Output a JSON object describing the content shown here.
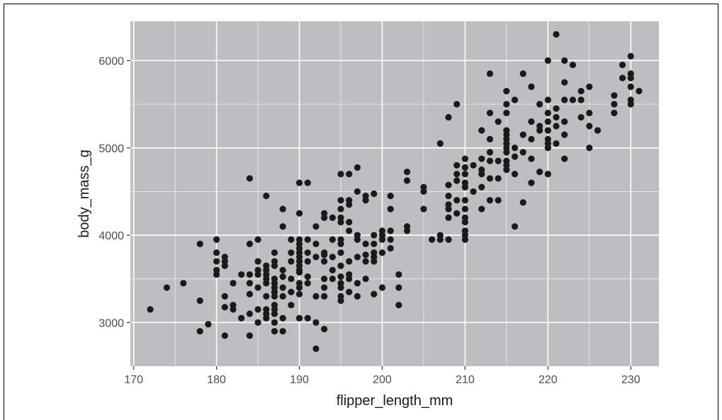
{
  "chart_data": {
    "type": "scatter",
    "title": "",
    "xlabel": "flipper_length_mm",
    "ylabel": "body_mass_g",
    "xlim": [
      169.6,
      233.4
    ],
    "ylim": [
      2500,
      6450
    ],
    "x_ticks": [
      170,
      180,
      190,
      200,
      210,
      220,
      230
    ],
    "y_ticks": [
      3000,
      4000,
      5000,
      6000
    ],
    "grid": true,
    "background": "#bdbec1",
    "grid_color": "#ffffff",
    "point_color": "#1a1a1a",
    "points": [
      [
        172,
        3150
      ],
      [
        174,
        3400
      ],
      [
        176,
        3450
      ],
      [
        178,
        3900
      ],
      [
        178,
        3250
      ],
      [
        178,
        2900
      ],
      [
        179,
        2980
      ],
      [
        180,
        3950
      ],
      [
        180,
        3800
      ],
      [
        180,
        3700
      ],
      [
        180,
        3600
      ],
      [
        180,
        3550
      ],
      [
        181,
        3750
      ],
      [
        181,
        3700
      ],
      [
        181,
        3650
      ],
      [
        181,
        3300
      ],
      [
        181,
        3175
      ],
      [
        181,
        2850
      ],
      [
        182,
        3450
      ],
      [
        182,
        3200
      ],
      [
        182,
        3150
      ],
      [
        183,
        3550
      ],
      [
        183,
        3050
      ],
      [
        184,
        4650
      ],
      [
        184,
        3900
      ],
      [
        184,
        3550
      ],
      [
        184,
        3450
      ],
      [
        184,
        3325
      ],
      [
        184,
        3100
      ],
      [
        184,
        2850
      ],
      [
        185,
        3950
      ],
      [
        185,
        3700
      ],
      [
        185,
        3600
      ],
      [
        185,
        3550
      ],
      [
        185,
        3400
      ],
      [
        185,
        3150
      ],
      [
        185,
        3000
      ],
      [
        186,
        4450
      ],
      [
        186,
        3650
      ],
      [
        186,
        3600
      ],
      [
        186,
        3550
      ],
      [
        186,
        3500
      ],
      [
        186,
        3450
      ],
      [
        186,
        3300
      ],
      [
        186,
        3150
      ],
      [
        186,
        3100
      ],
      [
        186,
        3050
      ],
      [
        187,
        3800
      ],
      [
        187,
        3700
      ],
      [
        187,
        3650
      ],
      [
        187,
        3500
      ],
      [
        187,
        3450
      ],
      [
        187,
        3400
      ],
      [
        187,
        3350
      ],
      [
        187,
        3300
      ],
      [
        187,
        3200
      ],
      [
        187,
        3150
      ],
      [
        187,
        3100
      ],
      [
        187,
        3000
      ],
      [
        187,
        2900
      ],
      [
        188,
        4300
      ],
      [
        188,
        4100
      ],
      [
        188,
        3600
      ],
      [
        188,
        3525
      ],
      [
        188,
        3400
      ],
      [
        188,
        3300
      ],
      [
        188,
        3050
      ],
      [
        188,
        2900
      ],
      [
        189,
        3950
      ],
      [
        189,
        3800
      ],
      [
        189,
        3700
      ],
      [
        189,
        3500
      ],
      [
        189,
        3350
      ],
      [
        189,
        3200
      ],
      [
        190,
        4600
      ],
      [
        190,
        4250
      ],
      [
        190,
        3950
      ],
      [
        190,
        3900
      ],
      [
        190,
        3850
      ],
      [
        190,
        3800
      ],
      [
        190,
        3750
      ],
      [
        190,
        3700
      ],
      [
        190,
        3650
      ],
      [
        190,
        3600
      ],
      [
        190,
        3575
      ],
      [
        190,
        3450
      ],
      [
        190,
        3400
      ],
      [
        190,
        3325
      ],
      [
        190,
        3050
      ],
      [
        191,
        4600
      ],
      [
        191,
        3950
      ],
      [
        191,
        3800
      ],
      [
        191,
        3700
      ],
      [
        191,
        3525
      ],
      [
        191,
        3450
      ],
      [
        191,
        3050
      ],
      [
        192,
        4100
      ],
      [
        192,
        3900
      ],
      [
        192,
        3750
      ],
      [
        192,
        3300
      ],
      [
        192,
        3000
      ],
      [
        192,
        2700
      ],
      [
        193,
        4250
      ],
      [
        193,
        4200
      ],
      [
        193,
        3800
      ],
      [
        193,
        3775
      ],
      [
        193,
        3700
      ],
      [
        193,
        3500
      ],
      [
        193,
        3400
      ],
      [
        193,
        3300
      ],
      [
        193,
        2925
      ],
      [
        194,
        4200
      ],
      [
        194,
        3950
      ],
      [
        194,
        3750
      ],
      [
        194,
        3600
      ],
      [
        194,
        3500
      ],
      [
        195,
        4700
      ],
      [
        195,
        4400
      ],
      [
        195,
        4300
      ],
      [
        195,
        4200
      ],
      [
        195,
        4150
      ],
      [
        195,
        3950
      ],
      [
        195,
        3900
      ],
      [
        195,
        3800
      ],
      [
        195,
        3650
      ],
      [
        195,
        3525
      ],
      [
        195,
        3450
      ],
      [
        195,
        3400
      ],
      [
        195,
        3300
      ],
      [
        195,
        3250
      ],
      [
        196,
        4700
      ],
      [
        196,
        4400
      ],
      [
        196,
        4350
      ],
      [
        196,
        4150
      ],
      [
        196,
        4050
      ],
      [
        196,
        3700
      ],
      [
        196,
        3550
      ],
      [
        196,
        3500
      ],
      [
        196,
        3350
      ],
      [
        197,
        4775
      ],
      [
        197,
        4500
      ],
      [
        197,
        4000
      ],
      [
        197,
        3950
      ],
      [
        197,
        3750
      ],
      [
        197,
        3450
      ],
      [
        197,
        3300
      ],
      [
        198,
        4450
      ],
      [
        198,
        4400
      ],
      [
        198,
        3900
      ],
      [
        198,
        3775
      ],
      [
        198,
        3700
      ],
      [
        198,
        3500
      ],
      [
        199,
        4475
      ],
      [
        199,
        4000
      ],
      [
        199,
        3900
      ],
      [
        199,
        3800
      ],
      [
        199,
        3750
      ],
      [
        199,
        3700
      ],
      [
        199,
        3325
      ],
      [
        200,
        4050
      ],
      [
        200,
        4000
      ],
      [
        200,
        3950
      ],
      [
        200,
        3800
      ],
      [
        200,
        3400
      ],
      [
        201,
        4450
      ],
      [
        201,
        4300
      ],
      [
        201,
        4050
      ],
      [
        201,
        3950
      ],
      [
        201,
        3850
      ],
      [
        202,
        3550
      ],
      [
        202,
        3400
      ],
      [
        202,
        3200
      ],
      [
        203,
        4725
      ],
      [
        203,
        4625
      ],
      [
        203,
        4100
      ],
      [
        203,
        4050
      ],
      [
        205,
        4550
      ],
      [
        205,
        4500
      ],
      [
        205,
        4300
      ],
      [
        206,
        3950
      ],
      [
        207,
        5050
      ],
      [
        207,
        4000
      ],
      [
        207,
        3950
      ],
      [
        208,
        5350
      ],
      [
        208,
        4575
      ],
      [
        208,
        4450
      ],
      [
        208,
        4350
      ],
      [
        208,
        4300
      ],
      [
        208,
        4200
      ],
      [
        208,
        3950
      ],
      [
        209,
        5500
      ],
      [
        209,
        4800
      ],
      [
        209,
        4700
      ],
      [
        209,
        4625
      ],
      [
        209,
        4400
      ],
      [
        209,
        4250
      ],
      [
        210,
        4875
      ],
      [
        210,
        4775
      ],
      [
        210,
        4700
      ],
      [
        210,
        4600
      ],
      [
        210,
        4550
      ],
      [
        210,
        4400
      ],
      [
        210,
        4300
      ],
      [
        210,
        4200
      ],
      [
        210,
        4150
      ],
      [
        210,
        4050
      ],
      [
        210,
        4000
      ],
      [
        210,
        3950
      ],
      [
        211,
        4800
      ],
      [
        211,
        4500
      ],
      [
        212,
        5200
      ],
      [
        212,
        4875
      ],
      [
        212,
        4750
      ],
      [
        212,
        4700
      ],
      [
        212,
        4550
      ],
      [
        212,
        4300
      ],
      [
        213,
        5850
      ],
      [
        213,
        5400
      ],
      [
        213,
        5100
      ],
      [
        213,
        4950
      ],
      [
        213,
        4850
      ],
      [
        213,
        4650
      ],
      [
        213,
        4400
      ],
      [
        214,
        5300
      ],
      [
        214,
        4850
      ],
      [
        214,
        4650
      ],
      [
        214,
        4400
      ],
      [
        215,
        5650
      ],
      [
        215,
        5500
      ],
      [
        215,
        5400
      ],
      [
        215,
        5200
      ],
      [
        215,
        5150
      ],
      [
        215,
        5100
      ],
      [
        215,
        5050
      ],
      [
        215,
        5000
      ],
      [
        215,
        4950
      ],
      [
        215,
        4850
      ],
      [
        215,
        4800
      ],
      [
        215,
        4750
      ],
      [
        216,
        5550
      ],
      [
        216,
        5000
      ],
      [
        216,
        4900
      ],
      [
        216,
        4700
      ],
      [
        216,
        4100
      ],
      [
        217,
        5850
      ],
      [
        217,
        5150
      ],
      [
        217,
        4950
      ],
      [
        217,
        4375
      ],
      [
        218,
        5700
      ],
      [
        218,
        5300
      ],
      [
        218,
        5100
      ],
      [
        218,
        4875
      ],
      [
        218,
        4600
      ],
      [
        219,
        5500
      ],
      [
        219,
        5250
      ],
      [
        219,
        5200
      ],
      [
        219,
        4725
      ],
      [
        220,
        6000
      ],
      [
        220,
        5550
      ],
      [
        220,
        5400
      ],
      [
        220,
        5300
      ],
      [
        220,
        5200
      ],
      [
        220,
        5100
      ],
      [
        220,
        5050
      ],
      [
        220,
        5000
      ],
      [
        220,
        4700
      ],
      [
        221,
        6300
      ],
      [
        221,
        5450
      ],
      [
        221,
        5350
      ],
      [
        221,
        5250
      ],
      [
        221,
        5050
      ],
      [
        222,
        6000
      ],
      [
        222,
        5750
      ],
      [
        222,
        5550
      ],
      [
        222,
        5300
      ],
      [
        222,
        5150
      ],
      [
        222,
        4875
      ],
      [
        223,
        5950
      ],
      [
        223,
        5550
      ],
      [
        224,
        5650
      ],
      [
        224,
        5550
      ],
      [
        224,
        5350
      ],
      [
        225,
        5700
      ],
      [
        225,
        5400
      ],
      [
        225,
        5250
      ],
      [
        225,
        5000
      ],
      [
        226,
        5200
      ],
      [
        228,
        5600
      ],
      [
        228,
        5500
      ],
      [
        228,
        5400
      ],
      [
        229,
        5950
      ],
      [
        229,
        5800
      ],
      [
        230,
        6050
      ],
      [
        230,
        5850
      ],
      [
        230,
        5800
      ],
      [
        230,
        5700
      ],
      [
        230,
        5550
      ],
      [
        230,
        5500
      ],
      [
        231,
        5650
      ]
    ]
  }
}
